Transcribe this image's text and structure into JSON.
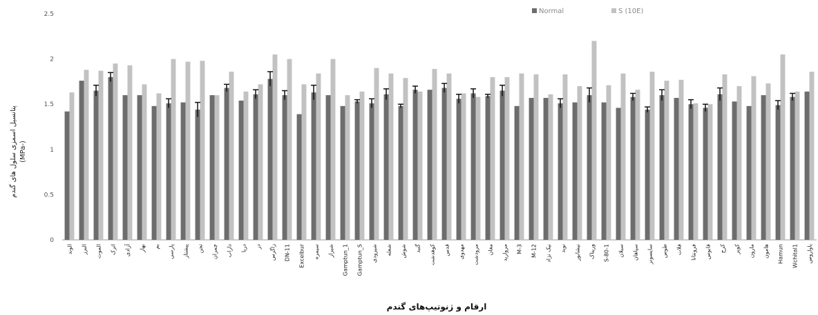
{
  "chart_data": {
    "type": "bar",
    "xlabel": "ارقام و ژنوتیپ‌های گندم",
    "ylabel_line1": "پتانسیل اسمزی سلول های گندم",
    "ylabel_line2": "(MPa-)",
    "ylim": [
      0,
      2.5
    ],
    "yticks": [
      "0",
      "0.5",
      "1",
      "1.5",
      "2",
      "2.5"
    ],
    "grid": false,
    "legend_position": "top-right",
    "series": [
      {
        "name": "Normal",
        "color": "#6d6d6d",
        "values": [
          1.42,
          1.76,
          1.65,
          1.8,
          1.6,
          1.6,
          1.48,
          1.51,
          1.52,
          1.44,
          1.6,
          1.68,
          1.54,
          1.61,
          1.78,
          1.6,
          1.39,
          1.63,
          1.6,
          1.48,
          1.53,
          1.51,
          1.61,
          1.48,
          1.66,
          1.66,
          1.68,
          1.56,
          1.62,
          1.59,
          1.65,
          1.48,
          1.57,
          1.57,
          1.51,
          1.52,
          1.6,
          1.52,
          1.46,
          1.58,
          1.44,
          1.6,
          1.57,
          1.5,
          1.46,
          1.61,
          1.53,
          1.48,
          1.6,
          1.49,
          1.58,
          1.64
        ],
        "errors": [
          0,
          0,
          0.06,
          0.05,
          0,
          0,
          0,
          0.05,
          0,
          0.08,
          0,
          0.04,
          0,
          0.05,
          0.08,
          0.05,
          0,
          0.08,
          0,
          0,
          0.02,
          0.05,
          0.06,
          0.02,
          0.04,
          0,
          0.05,
          0.05,
          0.05,
          0.02,
          0.06,
          0,
          0,
          0,
          0.05,
          0,
          0.08,
          0,
          0,
          0.04,
          0.03,
          0.06,
          0,
          0.05,
          0.04,
          0.07,
          0,
          0,
          0,
          0.05,
          0.04,
          0
        ]
      },
      {
        "name": "S (10E)",
        "color": "#c2c2c2",
        "values": [
          1.63,
          1.88,
          1.87,
          1.95,
          1.93,
          1.72,
          1.62,
          2.0,
          1.97,
          1.98,
          1.6,
          1.86,
          1.64,
          1.72,
          2.05,
          2.0,
          1.72,
          1.84,
          2.0,
          1.6,
          1.64,
          1.9,
          1.84,
          1.79,
          1.64,
          1.89,
          1.84,
          1.62,
          1.58,
          1.8,
          1.8,
          1.84,
          1.83,
          1.61,
          1.83,
          1.7,
          2.2,
          1.71,
          1.84,
          1.66,
          1.86,
          1.76,
          1.77,
          1.51,
          1.5,
          1.83,
          1.7,
          1.81,
          1.73,
          2.05,
          1.64,
          1.86
        ]
      }
    ],
    "categories": [
      "الوند",
      "البرز",
      "الموت",
      "اترک",
      "آزادی",
      "بهار",
      "بم",
      "پارسی",
      "پیشتاز",
      "تجن",
      "چمران",
      "داراب",
      "دریا",
      "دز",
      "زاگرس",
      "DN-11",
      "Excelbur",
      "سیمره",
      "شیراز",
      "Gamptun_1",
      "Gamptun_S",
      "شیرودی",
      "شعله",
      "شوش",
      "گنبد",
      "کوهدشت",
      "قدس",
      "مهدوی",
      "مرودشت",
      "مغان",
      "مروارید",
      "M-3",
      "M-12",
      "نیک نژاد",
      "نوید",
      "نیشابور",
      "وریناک",
      "S-80-1",
      "سبلان",
      "سپاهان",
      "سایسونز",
      "طوس",
      "فلات",
      "فرونتانا",
      "قابوس",
      "کرج",
      "کویر",
      "مارون",
      "هامون",
      "Hamun",
      "Wchital1",
      "یاواروس"
    ]
  },
  "legend": {
    "normal": "Normal",
    "stress": "S (10E)"
  }
}
